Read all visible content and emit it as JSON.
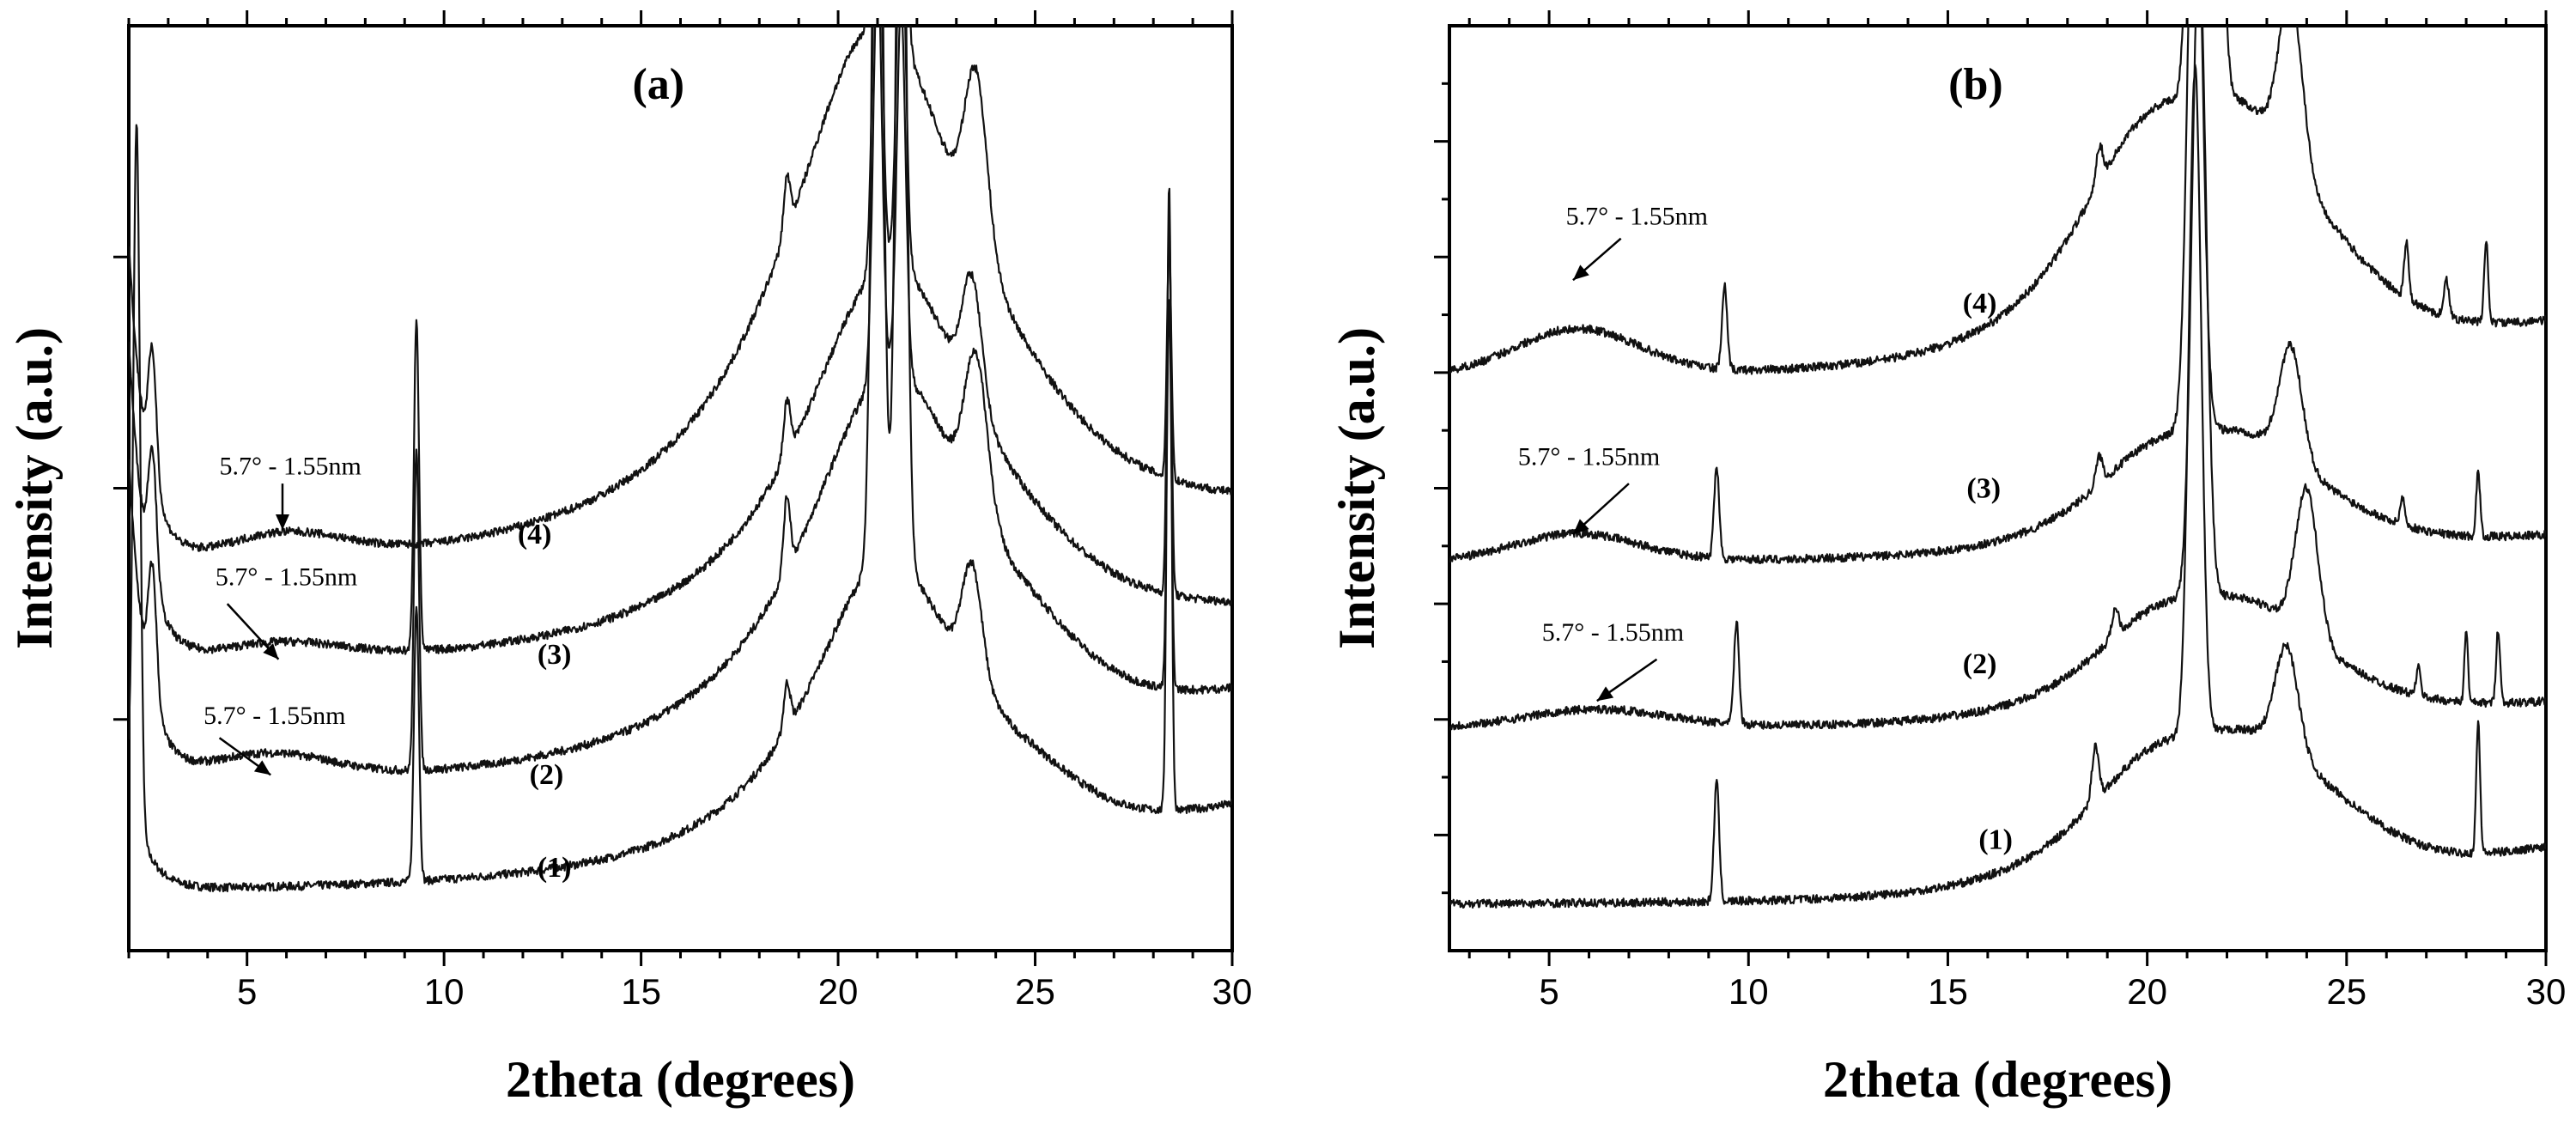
{
  "chart_data": [
    {
      "type": "line",
      "panel_label": "(a)",
      "xlabel": "2theta (degrees)",
      "ylabel": "Intensity (a.u.)",
      "xlim": [
        2,
        30
      ],
      "ylim": [
        0,
        100
      ],
      "xticks": [
        5,
        10,
        15,
        20,
        25,
        30
      ],
      "xtick_labels": [
        "5",
        "10",
        "15",
        "20",
        "25",
        "30"
      ],
      "yticks": [
        25,
        50,
        75
      ],
      "series": [
        {
          "name": "(1)",
          "label": "(1)",
          "label_x": 12.8,
          "label_y": 8,
          "baseline": 6,
          "tail": 12,
          "end": 12,
          "broad": {
            "center": 21.2,
            "width": 2.5,
            "height": 36,
            "exp": 2
          },
          "peaks": [
            [
              2.2,
              0.12,
              75
            ],
            [
              9.3,
              0.09,
              30
            ],
            [
              18.7,
              0.12,
              5
            ],
            [
              21.0,
              0.18,
              110
            ],
            [
              21.6,
              0.18,
              100
            ],
            [
              23.4,
              0.35,
              12
            ],
            [
              28.4,
              0.08,
              68
            ]
          ]
        },
        {
          "name": "(2)",
          "label": "(2)",
          "label_x": 12.6,
          "label_y": 18,
          "baseline": 17,
          "tail": 35,
          "end": 12,
          "hump": {
            "center": 5.5,
            "width": 2.3,
            "height": 3
          },
          "broad": {
            "center": 21.3,
            "width": 2.8,
            "height": 45,
            "exp": 2
          },
          "peaks": [
            [
              2.6,
              0.15,
              14
            ],
            [
              9.3,
              0.09,
              35
            ],
            [
              18.7,
              0.12,
              8
            ],
            [
              21.0,
              0.16,
              45
            ],
            [
              21.6,
              0.16,
              40
            ],
            [
              23.5,
              0.4,
              16
            ],
            [
              28.4,
              0.08,
              42
            ]
          ]
        },
        {
          "name": "(3)",
          "label": "(3)",
          "label_x": 12.8,
          "label_y": 31,
          "baseline": 30,
          "tail": 35,
          "end": 6,
          "hump": {
            "center": 5.8,
            "width": 2.3,
            "height": 2
          },
          "broad": {
            "center": 21.3,
            "width": 2.8,
            "height": 44,
            "exp": 2
          },
          "peaks": [
            [
              2.6,
              0.15,
              14
            ],
            [
              9.3,
              0.09,
              36
            ],
            [
              18.7,
              0.12,
              6
            ],
            [
              21.0,
              0.16,
              45
            ],
            [
              21.6,
              0.16,
              40
            ],
            [
              23.4,
              0.35,
              13
            ],
            [
              28.4,
              0.08,
              40
            ]
          ]
        },
        {
          "name": "(4)",
          "label": "(4)",
          "label_x": 12.3,
          "label_y": 44,
          "baseline": 40,
          "tail": 35,
          "end": 6,
          "hump": {
            "center": 5.9,
            "width": 2.2,
            "height": 3
          },
          "broad": {
            "center": 21.0,
            "width": 3.0,
            "height": 60,
            "exp": 2
          },
          "peaks": [
            [
              2.6,
              0.15,
              14
            ],
            [
              18.7,
              0.12,
              6
            ],
            [
              21.0,
              0.16,
              40
            ],
            [
              21.6,
              0.16,
              35
            ],
            [
              23.5,
              0.4,
              18
            ],
            [
              28.4,
              0.08,
              25
            ]
          ]
        }
      ],
      "annotations": [
        {
          "text": "5.7° - 1.55nm",
          "label_x": 6.1,
          "label_y": 51.5,
          "tip_x": 5.9,
          "tip_y": 45.5,
          "tail_x": 5.9,
          "tail_y": 50.5
        },
        {
          "text": "5.7° - 1.55nm",
          "label_x": 6.0,
          "label_y": 39.5,
          "tip_x": 5.8,
          "tip_y": 31.5,
          "tail_x": 4.5,
          "tail_y": 37.5
        },
        {
          "text": "5.7° - 1.55nm",
          "label_x": 5.7,
          "label_y": 24.5,
          "tip_x": 5.6,
          "tip_y": 19.0,
          "tail_x": 4.3,
          "tail_y": 23.0
        }
      ]
    },
    {
      "type": "line",
      "panel_label": "(b)",
      "xlabel": "2theta (degrees)",
      "ylabel": "Intensity (a.u.)",
      "xlim": [
        2.5,
        30
      ],
      "ylim": [
        0,
        100
      ],
      "xticks": [
        5,
        10,
        15,
        20,
        25,
        30
      ],
      "xtick_labels": [
        "5",
        "10",
        "15",
        "20",
        "25",
        "30"
      ],
      "yticks": [
        12.5,
        25,
        37.5,
        50,
        62.5,
        75,
        87.5
      ],
      "series": [
        {
          "name": "(1)",
          "label": "(1)",
          "label_x": 16.2,
          "label_y": 11,
          "baseline": 5,
          "tail": 0,
          "end": 9,
          "broad": {
            "center": 21.4,
            "width": 3.2,
            "height": 18,
            "exp": 3
          },
          "peaks": [
            [
              9.2,
              0.09,
              13
            ],
            [
              18.7,
              0.12,
              6
            ],
            [
              21.2,
              0.22,
              72
            ],
            [
              23.5,
              0.4,
              11
            ],
            [
              28.3,
              0.07,
              14
            ]
          ]
        },
        {
          "name": "(2)",
          "label": "(2)",
          "label_x": 15.8,
          "label_y": 30,
          "baseline": 24,
          "tail": 0,
          "end": 4,
          "hump": {
            "center": 6.2,
            "width": 2.5,
            "height": 2
          },
          "broad": {
            "center": 21.4,
            "width": 3.0,
            "height": 14,
            "exp": 3
          },
          "peaks": [
            [
              9.7,
              0.09,
              11
            ],
            [
              19.2,
              0.12,
              3
            ],
            [
              21.3,
              0.25,
              70
            ],
            [
              24.0,
              0.4,
              16
            ],
            [
              26.8,
              0.08,
              3
            ],
            [
              28.0,
              0.06,
              8
            ],
            [
              28.8,
              0.07,
              8
            ]
          ]
        },
        {
          "name": "(3)",
          "label": "(3)",
          "label_x": 15.9,
          "label_y": 49,
          "baseline": 42,
          "tail": 0,
          "end": 4,
          "hump": {
            "center": 5.7,
            "width": 2.2,
            "height": 3
          },
          "broad": {
            "center": 21.4,
            "width": 3.0,
            "height": 14,
            "exp": 3
          },
          "peaks": [
            [
              9.2,
              0.09,
              10
            ],
            [
              18.8,
              0.12,
              3
            ],
            [
              21.2,
              0.25,
              70
            ],
            [
              23.6,
              0.4,
              12
            ],
            [
              26.4,
              0.08,
              3
            ],
            [
              28.3,
              0.07,
              7
            ]
          ]
        },
        {
          "name": "(4)",
          "label": "(4)",
          "label_x": 15.8,
          "label_y": 69,
          "baseline": 62,
          "tail": 0,
          "end": 8,
          "hump": {
            "center": 5.7,
            "width": 2.2,
            "height": 5
          },
          "broad": {
            "center": 21.2,
            "width": 3.2,
            "height": 30,
            "exp": 3
          },
          "peaks": [
            [
              9.4,
              0.09,
              9
            ],
            [
              18.8,
              0.12,
              4
            ],
            [
              21.2,
              0.22,
              60
            ],
            [
              21.7,
              0.22,
              55
            ],
            [
              23.6,
              0.4,
              18
            ],
            [
              26.5,
              0.08,
              6
            ],
            [
              27.5,
              0.09,
              4
            ],
            [
              28.5,
              0.07,
              9
            ]
          ]
        }
      ],
      "annotations": [
        {
          "text": "5.7° - 1.55nm",
          "label_x": 7.2,
          "label_y": 78.5,
          "tip_x": 5.6,
          "tip_y": 72.5,
          "tail_x": 6.8,
          "tail_y": 77.0
        },
        {
          "text": "5.7° - 1.55nm",
          "label_x": 6.0,
          "label_y": 52.5,
          "tip_x": 5.6,
          "tip_y": 45.0,
          "tail_x": 7.0,
          "tail_y": 50.5
        },
        {
          "text": "5.7° - 1.55nm",
          "label_x": 6.6,
          "label_y": 33.5,
          "tip_x": 6.2,
          "tip_y": 27.0,
          "tail_x": 7.7,
          "tail_y": 31.5
        }
      ]
    }
  ]
}
